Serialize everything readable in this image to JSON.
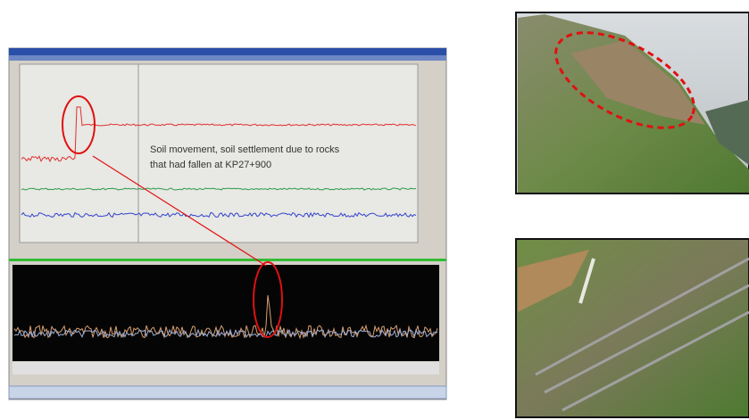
{
  "annotation": {
    "lines": [
      "Soil movement, soil settlement due to rocks",
      "that had fallen at KP27+900"
    ]
  }
}
